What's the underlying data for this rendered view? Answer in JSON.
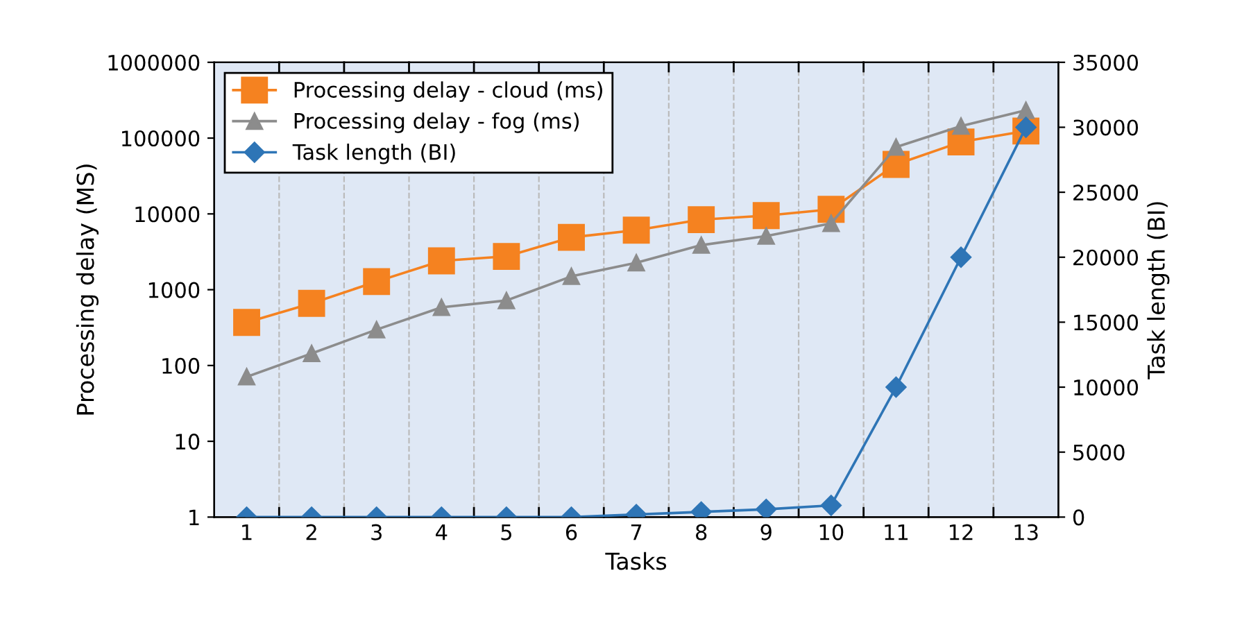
{
  "chart_data": {
    "type": "line",
    "xlabel": "Tasks",
    "ylabel": "Processing delay (MS)",
    "y2label": "Task length (BI)",
    "categories": [
      "1",
      "2",
      "3",
      "4",
      "5",
      "6",
      "7",
      "8",
      "9",
      "10",
      "11",
      "12",
      "13"
    ],
    "series": [
      {
        "name": "Processing delay - cloud (ms)",
        "color": "#f58220",
        "marker": "square",
        "values": [
          370,
          660,
          1280,
          2400,
          2750,
          4900,
          6100,
          8400,
          9500,
          11500,
          45000,
          89000,
          124000
        ]
      },
      {
        "name": "Processing delay - fog (ms)",
        "color": "#8c8c8c",
        "marker": "triangle",
        "values": [
          71,
          144,
          297,
          585,
          720,
          1500,
          2270,
          3870,
          5100,
          7500,
          76000,
          144000,
          233000
        ]
      },
      {
        "name": "Task length (BI)",
        "color": "#2e75b6",
        "marker": "diamond",
        "axis": "y2",
        "values": [
          0,
          0,
          0,
          0,
          0,
          0,
          200,
          400,
          600,
          900,
          10000,
          20000,
          30000
        ]
      }
    ],
    "log": "y",
    "ylim": [
      1,
      1000000
    ],
    "yticks": [
      1,
      10,
      100,
      1000,
      10000,
      100000,
      1000000
    ],
    "y2lim": [
      0,
      35000
    ],
    "y2ticks": [
      0,
      5000,
      10000,
      15000,
      20000,
      25000,
      30000,
      35000
    ],
    "grid": "x",
    "legend": "top left",
    "line_style": "solid"
  }
}
